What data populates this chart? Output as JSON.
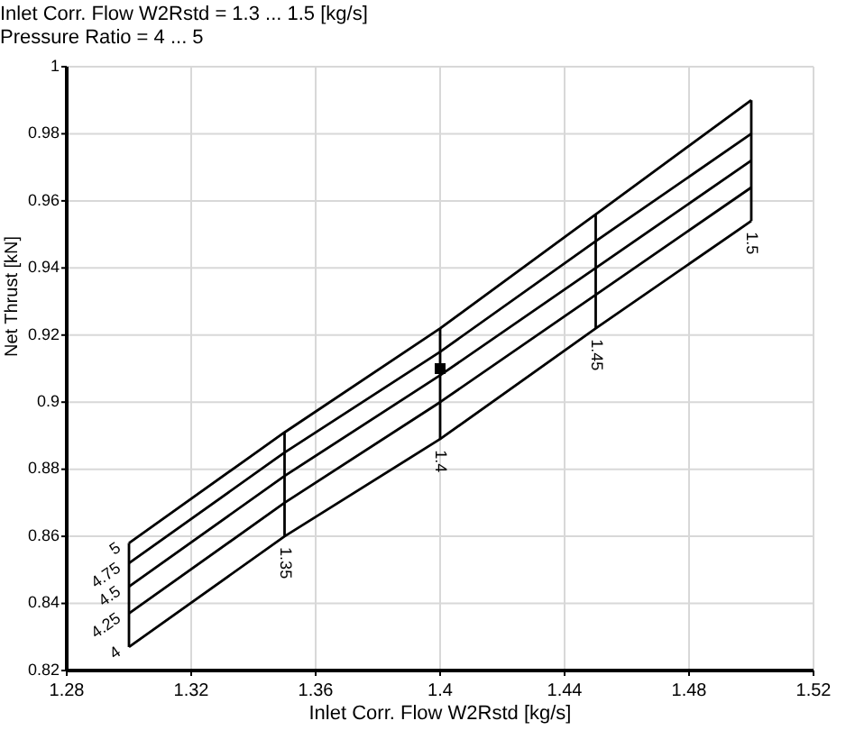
{
  "chart_data": {
    "type": "line",
    "title": "Inlet Corr. Flow W2Rstd = 1.3 ... 1.5 [kg/s]",
    "subtitle": "Pressure Ratio = 4 ... 5",
    "xlabel": "Inlet Corr. Flow W2Rstd [kg/s]",
    "ylabel": "Net Thrust [kN]",
    "xlim": [
      1.28,
      1.52
    ],
    "xticks": [
      1.28,
      1.32,
      1.36,
      1.4,
      1.44,
      1.48,
      1.52
    ],
    "ylim": [
      0.82,
      1
    ],
    "yticks": [
      0.82,
      0.84,
      0.86,
      0.88,
      0.9,
      0.92,
      0.94,
      0.96,
      0.98,
      1
    ],
    "grid": true,
    "series": [
      {
        "name": "4",
        "color": "#000000",
        "x": [
          1.3,
          1.35,
          1.4,
          1.45,
          1.5
        ],
        "values": [
          0.827,
          0.86,
          0.889,
          0.922,
          0.954
        ]
      },
      {
        "name": "4.25",
        "color": "#000000",
        "x": [
          1.3,
          1.35,
          1.4,
          1.45,
          1.5
        ],
        "values": [
          0.837,
          0.87,
          0.9,
          0.932,
          0.964
        ]
      },
      {
        "name": "4.5",
        "color": "#000000",
        "x": [
          1.3,
          1.35,
          1.4,
          1.45,
          1.5
        ],
        "values": [
          0.845,
          0.878,
          0.908,
          0.94,
          0.972
        ]
      },
      {
        "name": "4.75",
        "color": "#000000",
        "x": [
          1.3,
          1.35,
          1.4,
          1.45,
          1.5
        ],
        "values": [
          0.852,
          0.885,
          0.915,
          0.948,
          0.98
        ]
      },
      {
        "name": "5",
        "color": "#000000",
        "x": [
          1.3,
          1.35,
          1.4,
          1.45,
          1.5
        ],
        "values": [
          0.858,
          0.891,
          0.922,
          0.956,
          0.99
        ]
      },
      {
        "color": "#000000",
        "x": [
          1.3,
          1.3
        ],
        "values": [
          0.827,
          0.858
        ]
      },
      {
        "name": "1.35",
        "color": "#000000",
        "x": [
          1.35,
          1.35
        ],
        "values": [
          0.86,
          0.891
        ]
      },
      {
        "name": "1.4",
        "color": "#000000",
        "x": [
          1.4,
          1.4
        ],
        "values": [
          0.889,
          0.922
        ]
      },
      {
        "name": "1.45",
        "color": "#000000",
        "x": [
          1.45,
          1.45
        ],
        "values": [
          0.922,
          0.956
        ]
      },
      {
        "name": "1.5",
        "color": "#000000",
        "x": [
          1.5,
          1.5
        ],
        "values": [
          0.954,
          0.99
        ]
      },
      {
        "type": "scatter",
        "marker": "square",
        "color": "#000000",
        "x": [
          1.4
        ],
        "values": [
          0.91
        ]
      }
    ]
  }
}
